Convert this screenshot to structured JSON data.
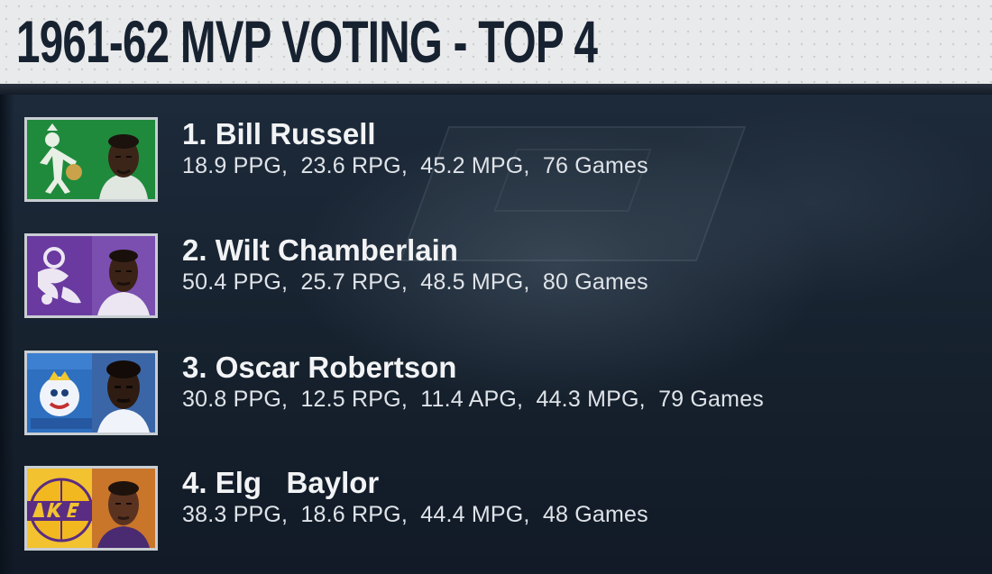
{
  "header": {
    "title": "1961-62 MVP VOTING - TOP 4"
  },
  "players": [
    {
      "name": "1. Bill Russell",
      "team_colors": {
        "bg": "#1f8a3c",
        "accent": "#e8efe4"
      },
      "stats": [
        "18.9 PPG",
        "23.6 RPG",
        "45.2 MPG",
        "76 Games"
      ]
    },
    {
      "name": "2. Wilt Chamberlain",
      "team_colors": {
        "bg": "#6a3aa0",
        "accent": "#ece6f3"
      },
      "stats": [
        "50.4 PPG",
        "25.7 RPG",
        "48.5 MPG",
        "80 Games"
      ]
    },
    {
      "name": "3. Oscar Robertson",
      "team_colors": {
        "bg": "#2e6fc0",
        "accent": "#f0f4fa"
      },
      "stats": [
        "30.8 PPG",
        "12.5 RPG",
        "11.4 APG",
        "44.3 MPG",
        "79 Games"
      ]
    },
    {
      "name": "4. Elg   Baylor",
      "team_colors": {
        "bg": "#f2c230",
        "accent": "#5a2c82"
      },
      "stats": [
        "38.3 PPG",
        "18.6 RPG",
        "44.4 MPG",
        "48 Games"
      ]
    }
  ]
}
